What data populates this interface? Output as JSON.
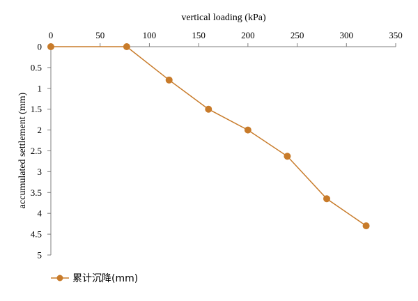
{
  "chart_data": {
    "type": "line",
    "title": "",
    "xlabel": "vertical loading (kPa)",
    "ylabel": "accumulated settlement (mm)",
    "x_axis_position": "top",
    "y_axis_inverted": true,
    "xlim": [
      0,
      350
    ],
    "ylim": [
      0,
      5
    ],
    "x_ticks": [
      0,
      50,
      100,
      150,
      200,
      250,
      300,
      350
    ],
    "y_ticks": [
      0,
      0.5,
      1,
      1.5,
      2,
      2.5,
      3,
      3.5,
      4,
      4.5,
      5
    ],
    "y_tick_labels": [
      "0",
      "0.5",
      "1",
      "1.5",
      "2",
      "2.5",
      "3",
      "3.5",
      "4",
      "4.5",
      "5"
    ],
    "grid": false,
    "legend_position": "bottom-left",
    "series": [
      {
        "name": "累计沉降(mm)",
        "color": "#C87B2A",
        "marker": "circle",
        "x": [
          0,
          77,
          120,
          160,
          200,
          240,
          280,
          320
        ],
        "y": [
          0,
          0,
          0.8,
          1.5,
          2.0,
          2.63,
          3.65,
          4.3
        ]
      }
    ]
  }
}
